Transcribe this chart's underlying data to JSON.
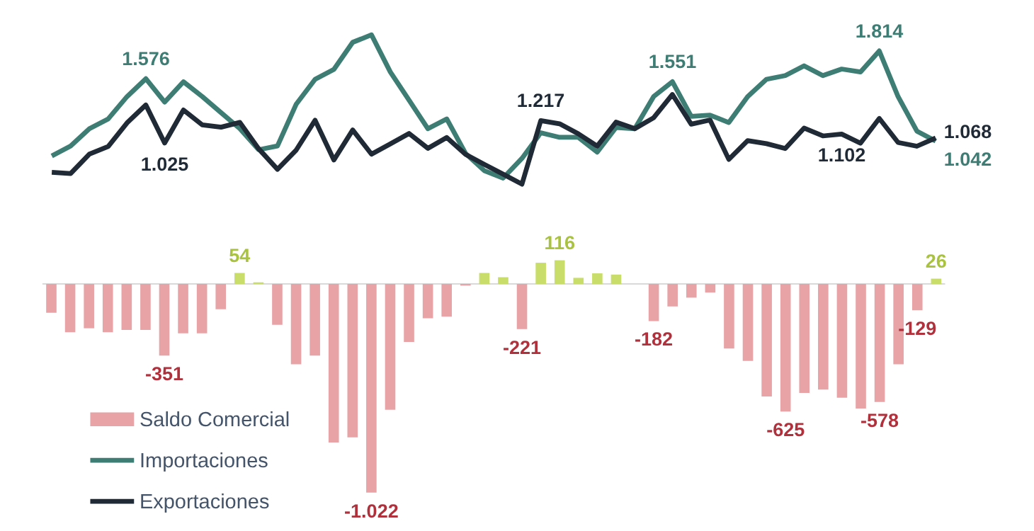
{
  "chart_data": [
    {
      "type": "line",
      "categories": [
        null,
        null,
        null,
        null,
        null,
        null,
        null,
        null,
        null,
        null,
        null,
        null,
        null,
        null,
        null,
        null,
        null,
        null,
        null,
        null,
        null,
        null,
        null,
        null,
        null,
        null,
        null,
        null,
        null,
        null,
        null,
        null,
        null,
        null,
        null,
        null,
        null,
        null,
        null,
        null,
        null,
        null,
        null,
        null,
        null,
        null,
        null,
        null
      ],
      "legend": "bottom left",
      "tick_labels": false,
      "series": [
        {
          "name": "Importaciones",
          "color": "#3d7d74",
          "values": [
            0.915,
            1.0,
            1.148,
            1.232,
            1.423,
            1.576,
            1.376,
            1.55,
            1.423,
            1.285,
            1.148,
            0.968,
            1.0,
            1.359,
            1.571,
            1.656,
            1.888,
            1.952,
            1.634,
            1.391,
            1.148,
            1.232,
            0.936,
            0.788,
            0.725,
            0.894,
            1.113,
            1.074,
            1.074,
            0.947,
            1.158,
            1.148,
            1.423,
            1.551,
            1.254,
            1.264,
            1.201,
            1.423,
            1.571,
            1.603,
            1.687,
            1.603,
            1.659,
            1.634,
            1.814,
            1.423,
            1.127,
            1.042
          ],
          "value_labels": [
            null,
            null,
            null,
            null,
            null,
            "1.576",
            null,
            null,
            null,
            null,
            null,
            null,
            null,
            null,
            null,
            null,
            null,
            null,
            null,
            null,
            null,
            null,
            null,
            null,
            null,
            null,
            null,
            null,
            null,
            null,
            null,
            null,
            null,
            "1.551",
            null,
            null,
            null,
            null,
            null,
            null,
            null,
            null,
            null,
            null,
            "1.814",
            null,
            null,
            "1.042"
          ]
        },
        {
          "name": "Exportaciones",
          "color": "#1f2a36",
          "values": [
            0.774,
            0.764,
            0.931,
            0.996,
            1.198,
            1.351,
            1.025,
            1.308,
            1.181,
            1.161,
            1.202,
            0.976,
            0.8,
            0.966,
            1.22,
            0.88,
            1.137,
            0.93,
            1.018,
            1.107,
            0.98,
            1.072,
            0.928,
            0.842,
            0.758,
            0.673,
            1.217,
            1.19,
            1.104,
            0.999,
            1.204,
            1.148,
            1.241,
            1.441,
            1.187,
            1.222,
            0.885,
            1.046,
            1.02,
            0.978,
            1.153,
            1.086,
            1.102,
            1.024,
            1.236,
            1.03,
            0.998,
            1.068
          ],
          "value_labels": [
            null,
            null,
            null,
            null,
            null,
            null,
            "1.025",
            null,
            null,
            null,
            null,
            null,
            null,
            null,
            null,
            null,
            null,
            null,
            null,
            null,
            null,
            null,
            null,
            null,
            null,
            null,
            "1.217",
            null,
            null,
            null,
            null,
            null,
            null,
            null,
            null,
            null,
            null,
            null,
            null,
            null,
            null,
            null,
            "1.102",
            null,
            null,
            null,
            null,
            "1.068"
          ]
        }
      ]
    },
    {
      "type": "bar",
      "categories": [
        null,
        null,
        null,
        null,
        null,
        null,
        null,
        null,
        null,
        null,
        null,
        null,
        null,
        null,
        null,
        null,
        null,
        null,
        null,
        null,
        null,
        null,
        null,
        null,
        null,
        null,
        null,
        null,
        null,
        null,
        null,
        null,
        null,
        null,
        null,
        null,
        null,
        null,
        null,
        null,
        null,
        null,
        null,
        null,
        null,
        null,
        null,
        null
      ],
      "legend": "bottom left",
      "tick_labels": false,
      "series": [
        {
          "name": "Saldo Comercial",
          "colors": [
            "#e8a3a6",
            "#e8a3a6",
            "#e8a3a6",
            "#e8a3a6",
            "#e8a3a6",
            "#e8a3a6",
            "#e8a3a6",
            "#e8a3a6",
            "#e8a3a6",
            "#e8a3a6",
            "#c8dd6a",
            "#c8dd6a",
            "#e8a3a6",
            "#e8a3a6",
            "#e8a3a6",
            "#e8a3a6",
            "#e8a3a6",
            "#e8a3a6",
            "#e8a3a6",
            "#e8a3a6",
            "#e8a3a6",
            "#e8a3a6",
            "#e8a3a6",
            "#c8dd6a",
            "#c8dd6a",
            "#e8a3a6",
            "#c8dd6a",
            "#c8dd6a",
            "#c8dd6a",
            "#c8dd6a",
            "#c8dd6a",
            "#c8dd6a",
            "#e8a3a6",
            "#e8a3a6",
            "#e8a3a6",
            "#e8a3a6",
            "#e8a3a6",
            "#e8a3a6",
            "#e8a3a6",
            "#e8a3a6",
            "#e8a3a6",
            "#e8a3a6",
            "#e8a3a6",
            "#e8a3a6",
            "#e8a3a6",
            "#e8a3a6",
            "#e8a3a6",
            "#c8dd6a"
          ],
          "values": [
            -141,
            -236,
            -217,
            -236,
            -225,
            -225,
            -351,
            -242,
            -242,
            -124,
            54,
            8,
            -200,
            -393,
            -351,
            -776,
            -751,
            -1022,
            -616,
            -284,
            -168,
            -160,
            -8,
            54,
            33,
            -221,
            104,
            116,
            30,
            52,
            46,
            0,
            -182,
            -110,
            -67,
            -42,
            -316,
            -377,
            -551,
            -625,
            -534,
            -517,
            -557,
            -610,
            -578,
            -393,
            -129,
            26
          ],
          "value_labels": [
            null,
            null,
            null,
            null,
            null,
            null,
            "-351",
            null,
            null,
            null,
            "54",
            null,
            null,
            null,
            null,
            null,
            null,
            "-1.022",
            null,
            null,
            null,
            null,
            null,
            null,
            null,
            "-221",
            null,
            "116",
            null,
            null,
            null,
            null,
            "-182",
            null,
            null,
            null,
            null,
            null,
            null,
            "-625",
            null,
            null,
            null,
            null,
            "-578",
            null,
            "-129",
            "26"
          ]
        }
      ]
    }
  ]
}
